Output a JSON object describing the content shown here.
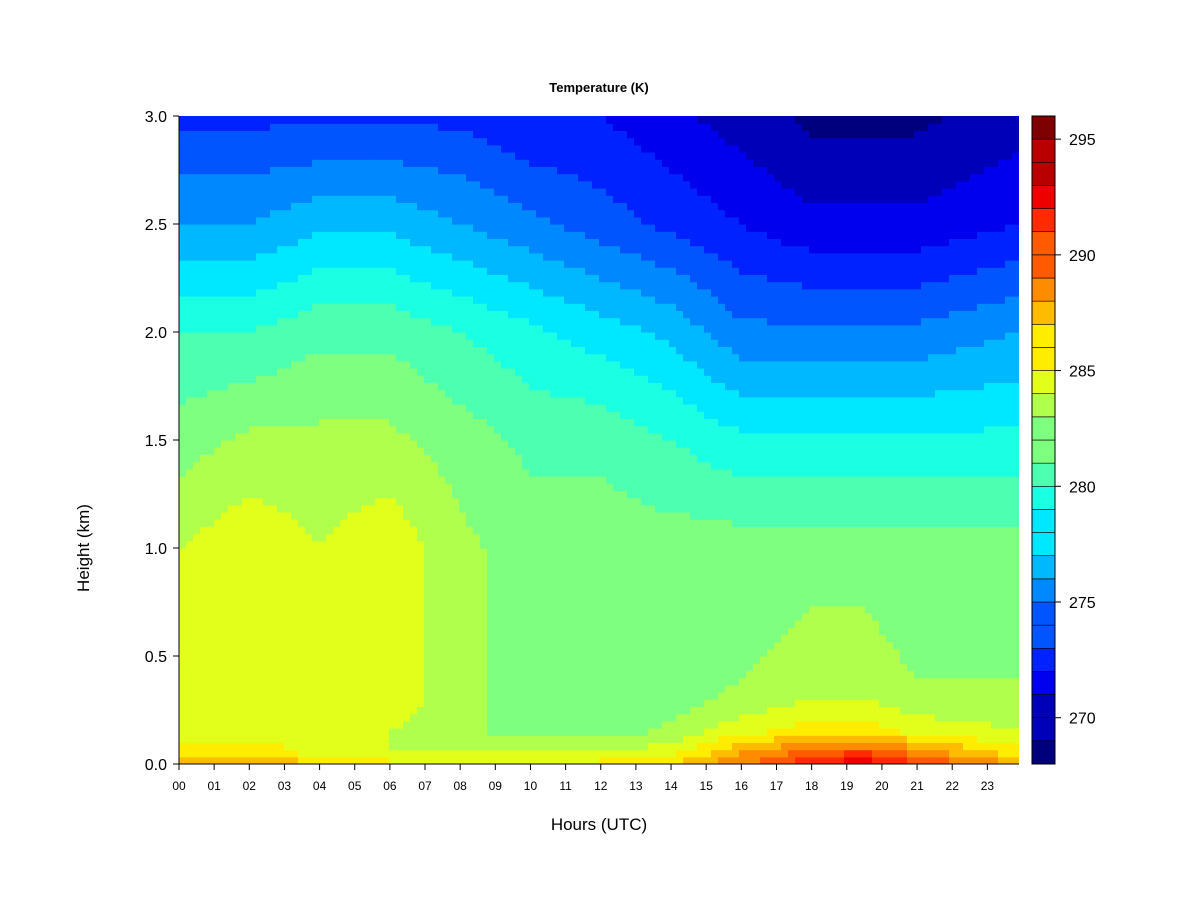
{
  "chart_data": {
    "type": "heatmap",
    "title": "Temperature (K)",
    "xlabel": "Hours (UTC)",
    "ylabel": "Height (km)",
    "x_ticks": [
      "00",
      "01",
      "02",
      "03",
      "04",
      "05",
      "06",
      "07",
      "08",
      "09",
      "10",
      "11",
      "12",
      "13",
      "14",
      "15",
      "16",
      "17",
      "18",
      "19",
      "20",
      "21",
      "22",
      "23"
    ],
    "xlim": [
      0,
      23.9
    ],
    "y_ticks": [
      "0.0",
      "0.5",
      "1.0",
      "1.5",
      "2.0",
      "2.5",
      "3.0"
    ],
    "y_tick_values": [
      0,
      0.5,
      1.0,
      1.5,
      2.0,
      2.5,
      3.0
    ],
    "ylim": [
      0,
      3.0
    ],
    "colorbar": {
      "label_values": [
        270,
        275,
        280,
        285,
        290,
        295
      ],
      "labels": [
        "270",
        "275",
        "280",
        "285",
        "290",
        "295"
      ],
      "range": [
        268,
        296
      ],
      "step": 1
    },
    "x_hours": [
      0,
      2,
      4,
      6,
      8,
      10,
      12,
      14,
      16,
      18,
      19.5,
      21,
      23.9
    ],
    "y_heights_km": [
      0,
      0.05,
      0.15,
      0.3,
      0.6,
      1.0,
      1.5,
      2.0,
      2.5,
      3.0
    ],
    "z_temperature_K": [
      [
        288,
        288,
        287,
        286,
        286,
        286,
        286,
        287,
        289,
        292,
        293,
        291,
        288
      ],
      [
        286,
        286,
        285,
        284,
        284,
        284,
        284,
        285,
        288,
        290,
        291,
        289,
        286
      ],
      [
        285,
        285,
        285,
        284,
        283,
        282,
        282,
        283,
        285,
        286,
        286,
        285,
        284
      ],
      [
        285,
        285,
        285,
        285,
        283,
        282,
        282,
        282,
        283,
        284,
        284,
        283,
        283
      ],
      [
        285,
        285,
        285,
        285,
        283,
        282,
        282,
        282,
        282,
        283,
        283,
        282,
        282
      ],
      [
        284,
        285,
        284,
        285,
        283,
        282,
        282,
        282,
        282,
        282,
        282,
        282,
        282
      ],
      [
        282,
        283,
        283,
        283,
        282,
        281,
        281,
        280,
        279,
        279,
        279,
        279,
        279
      ],
      [
        280,
        280,
        281,
        281,
        280,
        279,
        278,
        277,
        275,
        275,
        275,
        275,
        276
      ],
      [
        276,
        276,
        277,
        277,
        276,
        275,
        274,
        273,
        272,
        271,
        271,
        271,
        272
      ],
      [
        273,
        273,
        273,
        273,
        273,
        272,
        272,
        271,
        270,
        269,
        269,
        269,
        270
      ]
    ]
  },
  "colors": {
    "palette": [
      "#00007f",
      "#0000b8",
      "#0000ee",
      "#0022ff",
      "#0055ff",
      "#0088ff",
      "#00b8ff",
      "#00e8ff",
      "#1bffe2",
      "#4dffb0",
      "#7fff7f",
      "#b0ff4d",
      "#e2ff1b",
      "#ffed00",
      "#ffbb00",
      "#ff8b00",
      "#ff5a00",
      "#ff2a00",
      "#ee0000",
      "#b80000",
      "#7f0000"
    ]
  }
}
